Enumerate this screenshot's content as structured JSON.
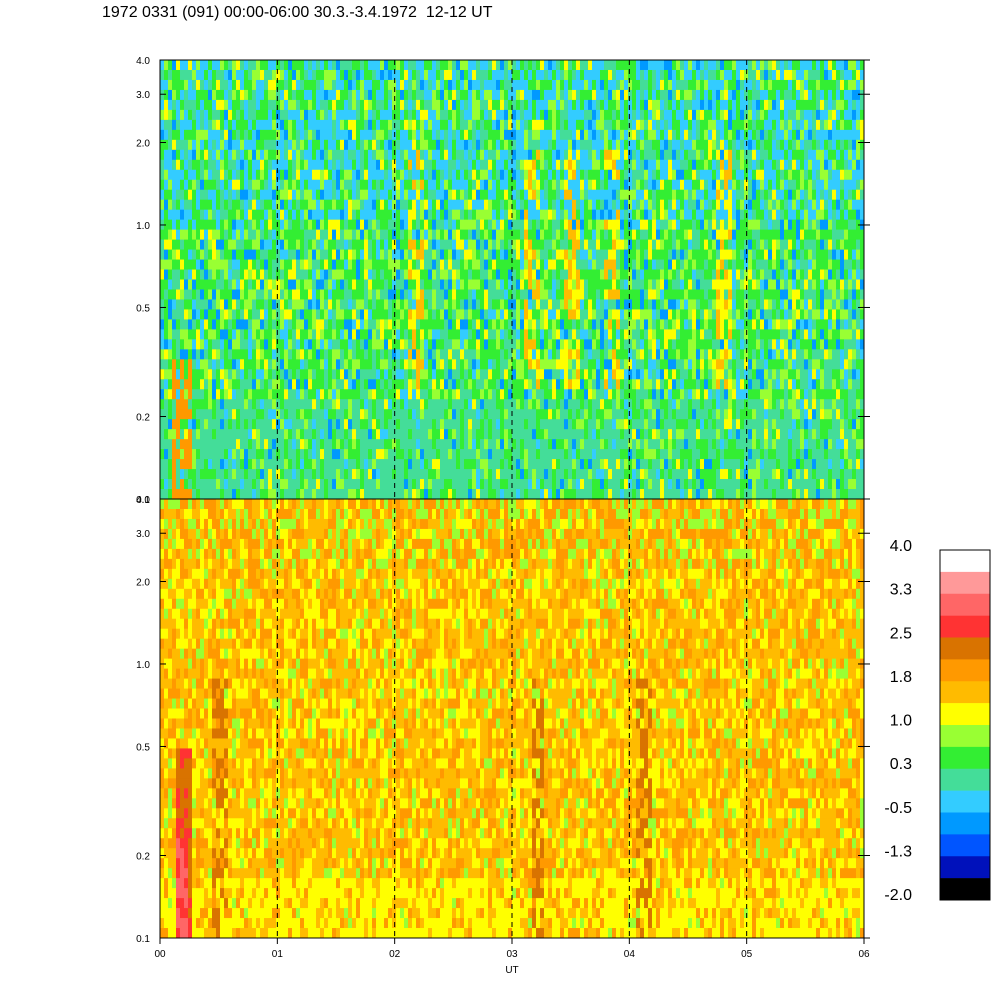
{
  "title": "1972 0331 (091) 00:00-06:00 30.3.-3.4.1972  12-12 UT",
  "chart_data": {
    "type": "heatmap",
    "title": "1972 0331 (091) 00:00-06:00 30.3.-3.4.1972  12-12 UT",
    "xlabel": "UT",
    "x_tick_labels": [
      "00",
      "01",
      "02",
      "03",
      "04",
      "05",
      "06"
    ],
    "x_range": [
      0,
      6
    ],
    "panels": [
      {
        "name": "upper",
        "y_scale": "log",
        "y_range": [
          0.1,
          4.0
        ],
        "y_tick_labels": [
          "4.0",
          "3.0",
          "2.0",
          "1.0",
          "0.5",
          "0.2",
          "0.1"
        ],
        "y_tick_values": [
          4.0,
          3.0,
          2.0,
          1.0,
          0.5,
          0.2,
          0.1
        ],
        "dominant_levels": "green-cyan (0.3 to -0.5), with yellow/orange bands near 02:10, 03:10, 03:45 and 04:50",
        "vertical_dashed_lines_at_hours": [
          1,
          2,
          3,
          4,
          5
        ]
      },
      {
        "name": "lower",
        "y_scale": "log",
        "y_range": [
          0.1,
          4.0
        ],
        "y_tick_labels": [
          "4.0",
          "3.0",
          "2.0",
          "1.0",
          "0.5",
          "0.2",
          "0.1"
        ],
        "y_tick_values": [
          4.0,
          3.0,
          2.0,
          1.0,
          0.5,
          0.2,
          0.1
        ],
        "dominant_levels": "yellow-orange (1.0 to 1.8), red (2.5 to 3.3) near 00:15 at low frequencies",
        "vertical_dashed_lines_at_hours": [
          1,
          2,
          3,
          4,
          5
        ]
      }
    ],
    "colorbar": {
      "labels": [
        "4.0",
        "3.3",
        "2.5",
        "1.8",
        "1.0",
        "0.3",
        "-0.5",
        "-1.3",
        "-2.0"
      ],
      "colors": [
        "#ffffff",
        "#ff9999",
        "#ff6666",
        "#ff3333",
        "#d97300",
        "#ff9900",
        "#ffbb00",
        "#ffff00",
        "#99ff33",
        "#33ee33",
        "#44dd99",
        "#33ccff",
        "#0099ff",
        "#0055ff",
        "#0011bb",
        "#000000"
      ]
    }
  }
}
